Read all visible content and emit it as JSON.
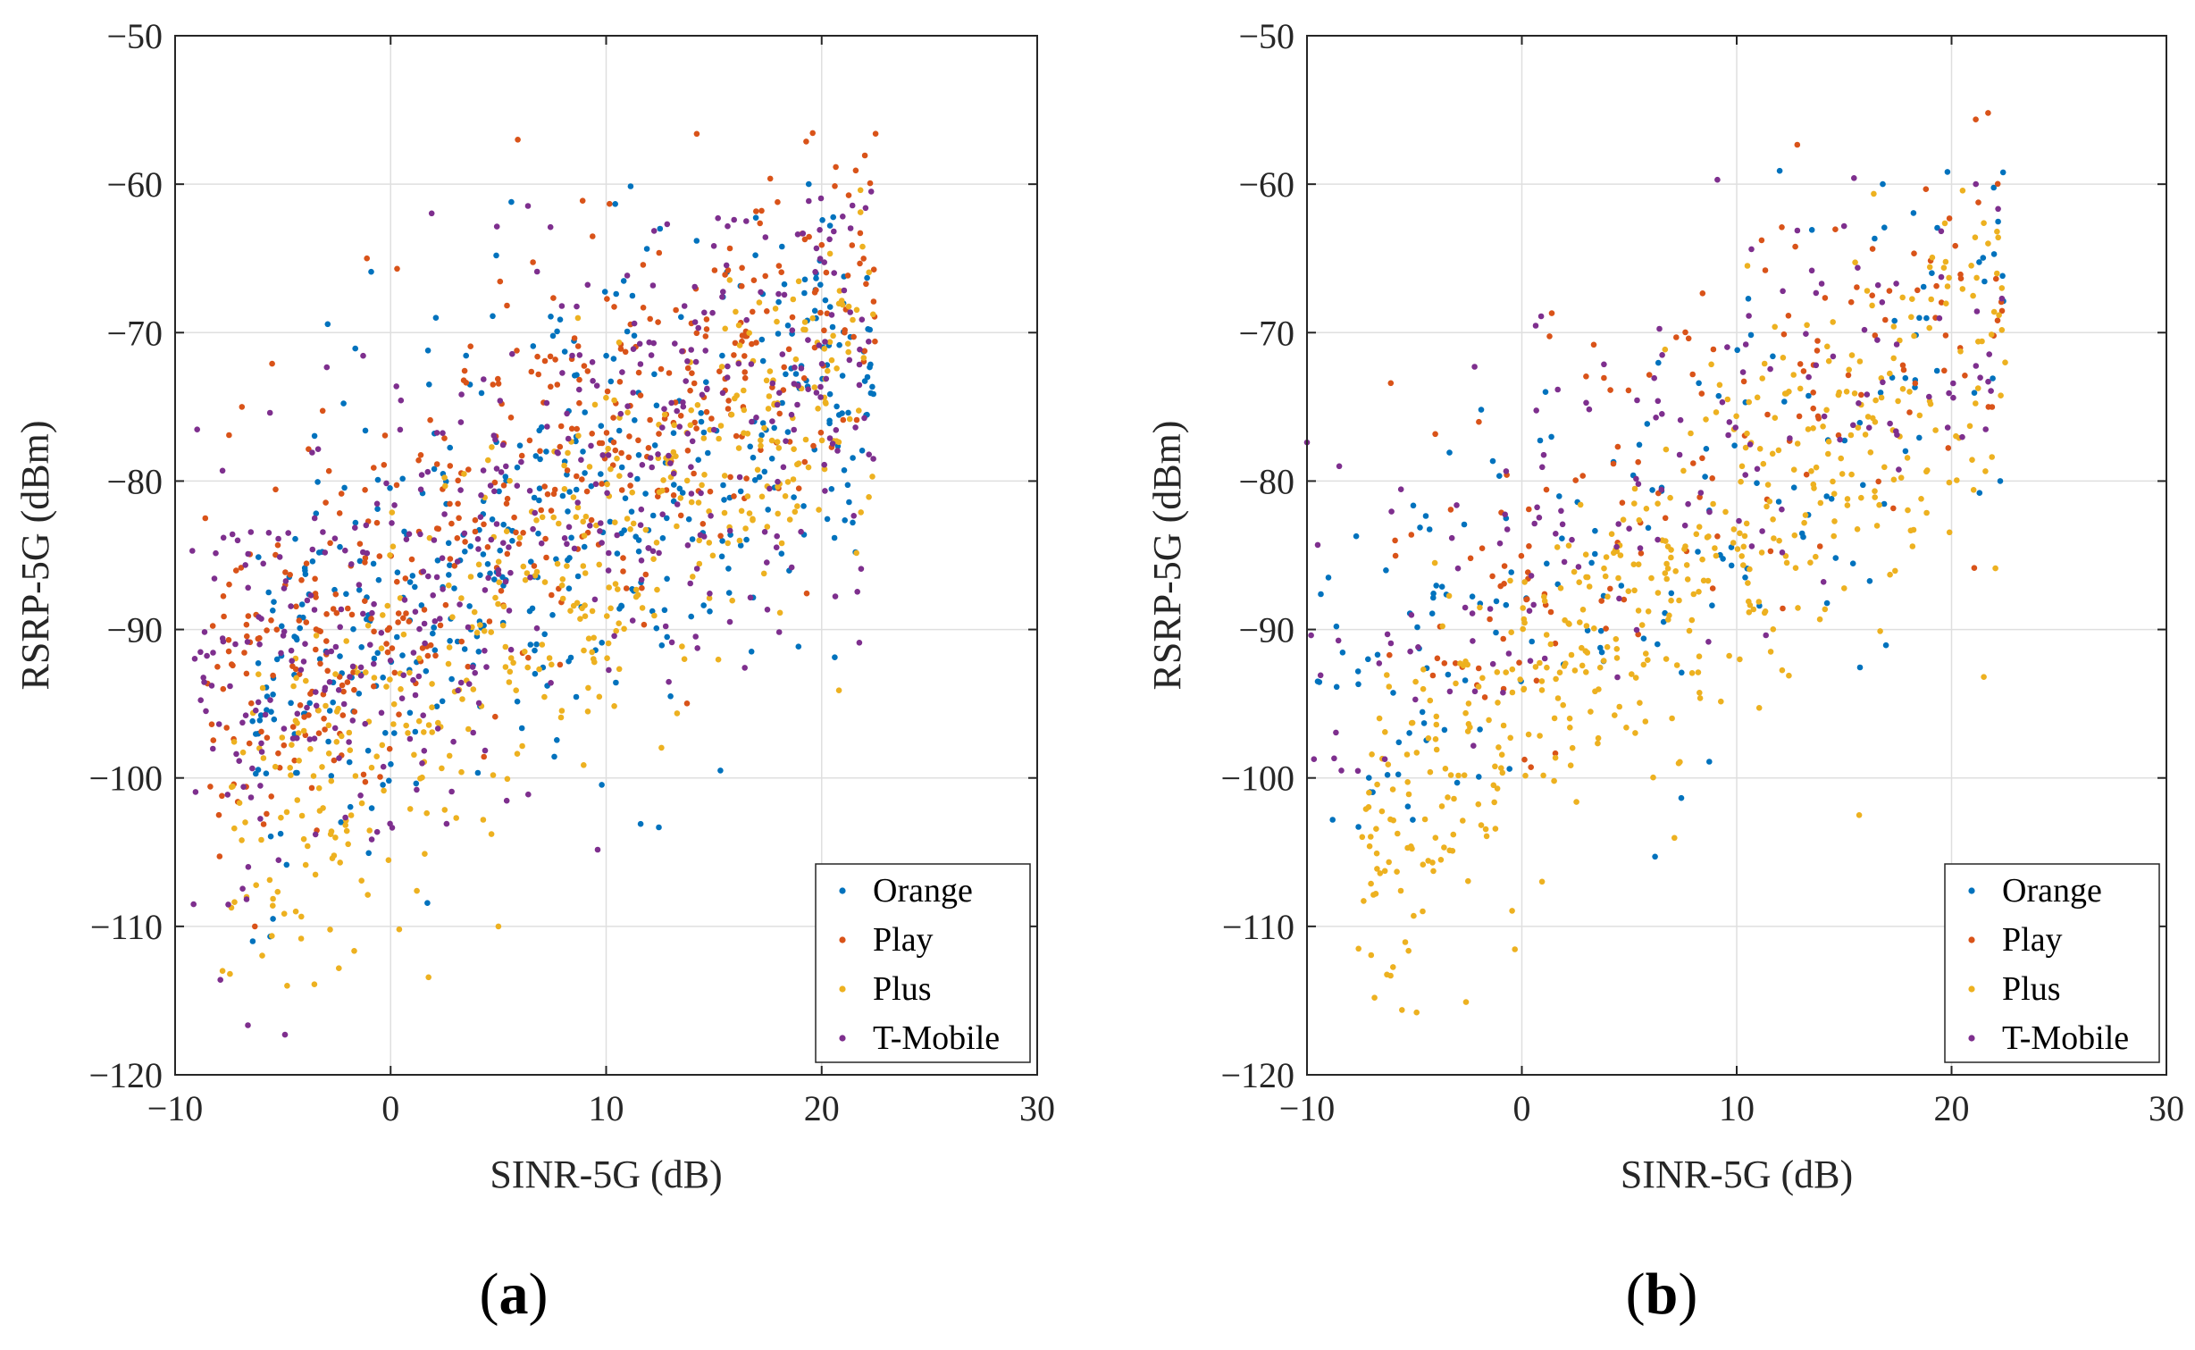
{
  "chart_data": [
    {
      "type": "scatter",
      "panel": "(a)",
      "panel_label": {
        "open": "(",
        "letter": "a",
        "close": ")"
      },
      "title": "",
      "xlabel": "SINR-5G  (dB)",
      "ylabel": "RSRP-5G  (dBm)",
      "xlim": [
        -10,
        30
      ],
      "ylim": [
        -120,
        -50
      ],
      "xticks": [
        -10,
        0,
        10,
        20,
        30
      ],
      "xtick_labels": [
        "−10",
        "0",
        "10",
        "20",
        "30"
      ],
      "yticks": [
        -120,
        -110,
        -100,
        -90,
        -80,
        -70,
        -60,
        -50
      ],
      "ytick_labels": [
        "−120",
        "−110",
        "−100",
        "−90",
        "−80",
        "−70",
        "−60",
        "−50"
      ],
      "grid": true,
      "legend_position": "bottom-right",
      "series": [
        {
          "name": "Orange",
          "color": "#0072BD",
          "count": 450,
          "distribution": {
            "x_range": [
              -6.5,
              22.5
            ],
            "slope": 0.85,
            "intercept": -90,
            "noise_sd": 7.5,
            "y_range": [
              -111,
              -60
            ]
          },
          "points": [
            [
              5.6,
              -61.2
            ],
            [
              19.4,
              -60.0
            ],
            [
              12.5,
              -63.0
            ],
            [
              -0.9,
              -65.9
            ],
            [
              11.6,
              -103.1
            ],
            [
              15.3,
              -99.5
            ],
            [
              -6.4,
              -111.0
            ],
            [
              2.1,
              -69.0
            ],
            [
              4.9,
              -64.8
            ]
          ]
        },
        {
          "name": "Play",
          "color": "#D95319",
          "count": 450,
          "distribution": {
            "x_range": [
              -8.5,
              22.5
            ],
            "slope": 0.95,
            "intercept": -87,
            "noise_sd": 7.0,
            "y_range": [
              -110,
              -56.5
            ]
          },
          "points": [
            [
              5.9,
              -57.0
            ],
            [
              22.5,
              -56.6
            ],
            [
              -1.1,
              -65.0
            ],
            [
              0.3,
              -65.7
            ],
            [
              -6.3,
              -110.0
            ],
            [
              -6.9,
              -75.0
            ],
            [
              -8.6,
              -82.5
            ]
          ]
        },
        {
          "name": "Plus",
          "color": "#EDB120",
          "count": 450,
          "distribution": {
            "x_range": [
              -7.8,
              22.5
            ],
            "slope": 1.1,
            "intercept": -96,
            "noise_sd": 6.0,
            "y_range": [
              -114,
              -60
            ]
          },
          "points": [
            [
              -7.8,
              -113.0
            ],
            [
              -4.8,
              -114.0
            ],
            [
              5.0,
              -110.0
            ],
            [
              0.4,
              -110.2
            ],
            [
              20.8,
              -94.1
            ],
            [
              21.8,
              -60.4
            ],
            [
              -4.4,
              -109.0
            ]
          ]
        },
        {
          "name": "T-Mobile",
          "color": "#7E2F8E",
          "count": 450,
          "distribution": {
            "x_range": [
              -9.2,
              22.5
            ],
            "slope": 0.85,
            "intercept": -88,
            "noise_sd": 8.0,
            "y_range": [
              -117.5,
              -60.5
            ]
          },
          "points": [
            [
              -4.9,
              -117.3
            ],
            [
              -7.9,
              -113.6
            ],
            [
              -9.2,
              -84.7
            ],
            [
              -7.8,
              -79.3
            ],
            [
              22.3,
              -60.5
            ],
            [
              22.4,
              -78.5
            ],
            [
              -5.6,
              -75.4
            ]
          ]
        }
      ]
    },
    {
      "type": "scatter",
      "panel": "(b)",
      "panel_label": {
        "open": "(",
        "letter": "b",
        "close": ")"
      },
      "title": "",
      "xlabel": "SINR-5G  (dB)",
      "ylabel": "RSRP-5G  (dBm)",
      "xlim": [
        -10,
        30
      ],
      "ylim": [
        -120,
        -50
      ],
      "xticks": [
        -10,
        0,
        10,
        20,
        30
      ],
      "xtick_labels": [
        "−10",
        "0",
        "10",
        "20",
        "30"
      ],
      "yticks": [
        -120,
        -110,
        -100,
        -90,
        -80,
        -70,
        -60,
        -50
      ],
      "ytick_labels": [
        "−120",
        "−110",
        "−100",
        "−90",
        "−80",
        "−70",
        "−60",
        "−50"
      ],
      "grid": true,
      "legend_position": "bottom-right",
      "series": [
        {
          "name": "Orange",
          "color": "#0072BD",
          "count": 170,
          "distribution": {
            "x_range": [
              -9.7,
              22.5
            ],
            "slope": 0.9,
            "intercept": -88,
            "noise_sd": 7.0,
            "y_range": [
              -106,
              -59
            ]
          },
          "points": [
            [
              12.0,
              -59.1
            ],
            [
              22.4,
              -59.2
            ],
            [
              16.8,
              -60.0
            ],
            [
              -9.5,
              -93.5
            ],
            [
              -9.0,
              -86.5
            ],
            [
              6.2,
              -105.3
            ],
            [
              1.1,
              -74.0
            ]
          ]
        },
        {
          "name": "Play",
          "color": "#D95319",
          "count": 150,
          "distribution": {
            "x_range": [
              -6.2,
              22.5
            ],
            "slope": 1.0,
            "intercept": -86,
            "noise_sd": 6.5,
            "y_range": [
              -102,
              -55
            ]
          },
          "points": [
            [
              21.7,
              -55.2
            ],
            [
              -6.1,
              -73.4
            ],
            [
              -5.9,
              -84.0
            ],
            [
              12.1,
              -62.9
            ],
            [
              19.9,
              -62.3
            ]
          ]
        },
        {
          "name": "Plus",
          "color": "#EDB120",
          "count": 480,
          "distribution": {
            "x_range": [
              -7.6,
              22.5
            ],
            "slope": 1.15,
            "intercept": -95,
            "noise_sd": 6.0,
            "y_range": [
              -116,
              -60
            ]
          },
          "points": [
            [
              -4.9,
              -115.8
            ],
            [
              -2.6,
              -115.1
            ],
            [
              -7.6,
              -111.5
            ],
            [
              -6.8,
              -107.8
            ],
            [
              10.5,
              -65.5
            ],
            [
              21.7,
              -64.0
            ],
            [
              15.7,
              -102.5
            ],
            [
              21.5,
              -93.2
            ]
          ]
        },
        {
          "name": "T-Mobile",
          "color": "#7E2F8E",
          "count": 150,
          "distribution": {
            "x_range": [
              -10,
              22.5
            ],
            "slope": 0.85,
            "intercept": -86,
            "noise_sd": 7.0,
            "y_range": [
              -100,
              -59.5
            ]
          },
          "points": [
            [
              -10.0,
              -77.4
            ],
            [
              -9.5,
              -84.3
            ],
            [
              -8.4,
              -99.5
            ],
            [
              -8.5,
              -79.0
            ],
            [
              9.1,
              -59.7
            ],
            [
              -2.2,
              -72.3
            ],
            [
              0.9,
              -68.9
            ]
          ]
        }
      ]
    }
  ]
}
